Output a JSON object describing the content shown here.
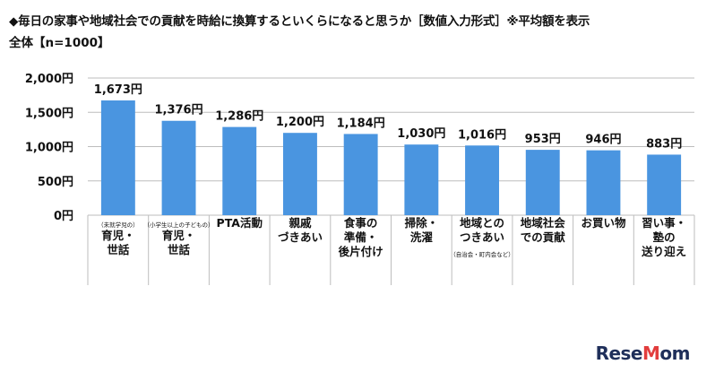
{
  "header": {
    "title": "◆毎日の家事や地域社会での貢献を時給に換算するといくらになると思うか［数値入力形式］※平均額を表示",
    "subtitle": "全体【n=1000】"
  },
  "watermark": {
    "brand": "ReseMom"
  },
  "colors": {
    "bar": "#4a95e0",
    "grid": "#bdbdbd",
    "text": "#111111"
  },
  "chart_data": {
    "type": "bar",
    "categories": [
      {
        "note": "（未就学児の）",
        "lines": [
          "育児・",
          "世話"
        ],
        "note_position": "top"
      },
      {
        "note": "（小学生以上の子どもの）",
        "lines": [
          "育児・",
          "世話"
        ],
        "note_position": "top"
      },
      {
        "lines": [
          "PTA活動"
        ]
      },
      {
        "lines": [
          "親戚",
          "づきあい"
        ]
      },
      {
        "lines": [
          "食事の",
          "準備・",
          "後片付け"
        ]
      },
      {
        "lines": [
          "掃除・",
          "洗濯"
        ]
      },
      {
        "lines": [
          "地域との",
          "つきあい"
        ],
        "note": "（自治会・町内会など）",
        "note_position": "bottom"
      },
      {
        "lines": [
          "地域社会",
          "での貢献"
        ]
      },
      {
        "lines": [
          "お買い物"
        ]
      },
      {
        "lines": [
          "習い事・",
          "塾の",
          "送り迎え"
        ]
      }
    ],
    "values": [
      1673,
      1376,
      1286,
      1200,
      1184,
      1030,
      1016,
      953,
      946,
      883
    ],
    "value_labels": [
      "1,673円",
      "1,376円",
      "1,286円",
      "1,200円",
      "1,184円",
      "1,030円",
      "1,016円",
      "953円",
      "946円",
      "883円"
    ],
    "yticks": [
      0,
      500,
      1000,
      1500,
      2000
    ],
    "ytick_labels": [
      "0円",
      "500円",
      "1,000円",
      "1,500円",
      "2,000円"
    ],
    "ylim": [
      0,
      2000
    ],
    "grid": true
  }
}
